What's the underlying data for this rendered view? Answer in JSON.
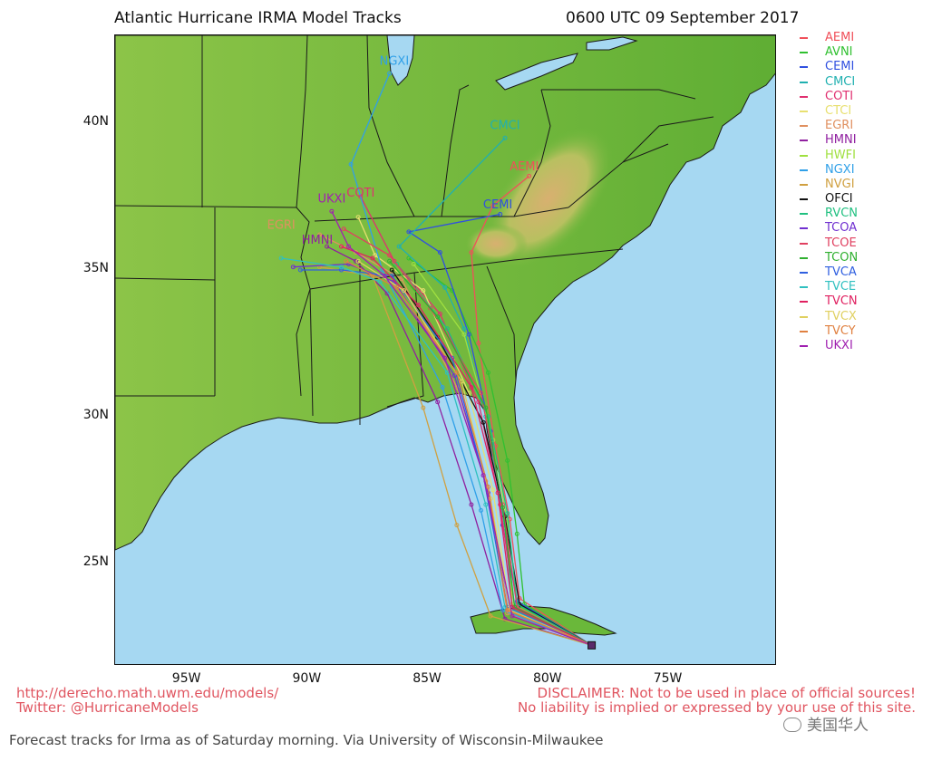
{
  "header": {
    "title": "Atlantic Hurricane IRMA Model Tracks",
    "timestamp": "0600 UTC 09 September 2017"
  },
  "map": {
    "lon_range": [
      -98,
      -70.5
    ],
    "lat_range": [
      21.5,
      43
    ],
    "lat_ticks": [
      {
        "value": 40,
        "label": "40N"
      },
      {
        "value": 35,
        "label": "35N"
      },
      {
        "value": 30,
        "label": "30N"
      },
      {
        "value": 25,
        "label": "25N"
      }
    ],
    "lon_ticks": [
      {
        "value": -95,
        "label": "95W"
      },
      {
        "value": -90,
        "label": "90W"
      },
      {
        "value": -85,
        "label": "85W"
      },
      {
        "value": -80,
        "label": "80W"
      },
      {
        "value": -75,
        "label": "75W"
      }
    ],
    "colors": {
      "land": "#6ab83a",
      "ocean": "#a6d8f2",
      "lakes": "#a6d8f2",
      "borders": "#1a1a1a"
    },
    "storm_origin": {
      "lon": -78.2,
      "lat": 22.2
    }
  },
  "legend": [
    {
      "name": "AEMI",
      "color": "#f0505a"
    },
    {
      "name": "AVNI",
      "color": "#30c030"
    },
    {
      "name": "CEMI",
      "color": "#3050e0"
    },
    {
      "name": "CMCI",
      "color": "#20b0b0"
    },
    {
      "name": "COTI",
      "color": "#e03070"
    },
    {
      "name": "CTCI",
      "color": "#e8e070"
    },
    {
      "name": "EGRI",
      "color": "#e09060"
    },
    {
      "name": "HMNI",
      "color": "#9020a0"
    },
    {
      "name": "HWFI",
      "color": "#a0e040"
    },
    {
      "name": "NGXI",
      "color": "#30a0e8"
    },
    {
      "name": "NVGI",
      "color": "#d0a040"
    },
    {
      "name": "OFCI",
      "color": "#111111"
    },
    {
      "name": "RVCN",
      "color": "#20c080"
    },
    {
      "name": "TCOA",
      "color": "#7030d0"
    },
    {
      "name": "TCOE",
      "color": "#e04060"
    },
    {
      "name": "TCON",
      "color": "#30b030"
    },
    {
      "name": "TVCA",
      "color": "#3060e0"
    },
    {
      "name": "TVCE",
      "color": "#30c0c0"
    },
    {
      "name": "TVCN",
      "color": "#e02060"
    },
    {
      "name": "TVCX",
      "color": "#e0d060"
    },
    {
      "name": "TVCY",
      "color": "#e08040"
    },
    {
      "name": "UKXI",
      "color": "#a020b0"
    }
  ],
  "tracks": [
    {
      "name": "AEMI",
      "points": [
        [
          -78.2,
          22.2
        ],
        [
          -81.2,
          23.8
        ],
        [
          -81.6,
          26.5
        ],
        [
          -82.2,
          29.0
        ],
        [
          -82.9,
          32.5
        ],
        [
          -83.2,
          35.6
        ],
        [
          -82.3,
          37.2
        ],
        [
          -80.8,
          38.2
        ]
      ]
    },
    {
      "name": "AVNI",
      "points": [
        [
          -78.2,
          22.2
        ],
        [
          -81.0,
          23.6
        ],
        [
          -81.3,
          26.0
        ],
        [
          -81.7,
          28.5
        ],
        [
          -82.5,
          31.5
        ],
        [
          -84.0,
          34.3
        ],
        [
          -85.8,
          35.4
        ]
      ]
    },
    {
      "name": "CEMI",
      "points": [
        [
          -78.2,
          22.2
        ],
        [
          -81.3,
          23.7
        ],
        [
          -81.9,
          26.3
        ],
        [
          -82.4,
          29.5
        ],
        [
          -83.3,
          32.8
        ],
        [
          -84.5,
          35.6
        ],
        [
          -85.8,
          36.3
        ],
        [
          -82.0,
          36.9
        ]
      ]
    },
    {
      "name": "CMCI",
      "points": [
        [
          -78.2,
          22.2
        ],
        [
          -81.5,
          23.5
        ],
        [
          -81.8,
          26.2
        ],
        [
          -82.6,
          30.0
        ],
        [
          -83.5,
          33.0
        ],
        [
          -84.3,
          34.4
        ],
        [
          -86.2,
          35.8
        ],
        [
          -81.8,
          39.5
        ]
      ]
    },
    {
      "name": "COTI",
      "points": [
        [
          -78.2,
          22.2
        ],
        [
          -81.4,
          23.5
        ],
        [
          -82.0,
          27.0
        ],
        [
          -82.9,
          30.5
        ],
        [
          -84.5,
          33.5
        ],
        [
          -86.4,
          35.3
        ],
        [
          -87.8,
          37.5
        ]
      ]
    },
    {
      "name": "CTCI",
      "points": [
        [
          -78.2,
          22.2
        ],
        [
          -81.6,
          23.4
        ],
        [
          -82.3,
          27.5
        ],
        [
          -83.3,
          30.8
        ],
        [
          -85.2,
          34.3
        ],
        [
          -87.2,
          35.5
        ],
        [
          -87.9,
          36.8
        ]
      ]
    },
    {
      "name": "EGRI",
      "points": [
        [
          -78.2,
          22.2
        ],
        [
          -81.7,
          23.3
        ],
        [
          -82.6,
          27.8
        ],
        [
          -83.8,
          31.0
        ],
        [
          -86.1,
          34.7
        ],
        [
          -88.0,
          35.6
        ],
        [
          -89.5,
          36.2
        ]
      ]
    },
    {
      "name": "HMNI",
      "points": [
        [
          -78.2,
          22.2
        ],
        [
          -81.8,
          23.1
        ],
        [
          -83.2,
          27.0
        ],
        [
          -84.6,
          30.5
        ],
        [
          -86.7,
          34.2
        ],
        [
          -88.0,
          35.3
        ],
        [
          -89.2,
          35.8
        ]
      ]
    },
    {
      "name": "HWFI",
      "points": [
        [
          -78.2,
          22.2
        ],
        [
          -81.5,
          23.6
        ],
        [
          -81.7,
          26.4
        ],
        [
          -82.3,
          29.2
        ],
        [
          -83.5,
          32.8
        ],
        [
          -85.6,
          35.2
        ]
      ]
    },
    {
      "name": "NGXI",
      "points": [
        [
          -78.2,
          22.2
        ],
        [
          -81.9,
          23.4
        ],
        [
          -82.8,
          26.8
        ],
        [
          -84.4,
          31.0
        ],
        [
          -86.9,
          35.0
        ],
        [
          -88.2,
          38.6
        ],
        [
          -86.6,
          41.7
        ]
      ]
    },
    {
      "name": "NVGI",
      "points": [
        [
          -78.2,
          22.2
        ],
        [
          -82.4,
          23.2
        ],
        [
          -83.8,
          26.3
        ],
        [
          -85.2,
          30.3
        ],
        [
          -87.3,
          34.8
        ],
        [
          -89.5,
          35.1
        ]
      ]
    },
    {
      "name": "OFCI",
      "points": [
        [
          -78.2,
          22.2
        ],
        [
          -81.2,
          23.6
        ],
        [
          -81.8,
          26.6
        ],
        [
          -82.7,
          29.8
        ],
        [
          -84.6,
          32.7
        ],
        [
          -86.5,
          35.0
        ]
      ]
    },
    {
      "name": "RVCN",
      "points": [
        [
          -78.2,
          22.2
        ],
        [
          -81.3,
          23.6
        ],
        [
          -81.7,
          26.7
        ],
        [
          -82.5,
          30.0
        ],
        [
          -84.2,
          33.0
        ],
        [
          -86.3,
          35.2
        ]
      ]
    },
    {
      "name": "TCOA",
      "points": [
        [
          -78.2,
          22.2
        ],
        [
          -81.6,
          23.4
        ],
        [
          -82.5,
          27.4
        ],
        [
          -83.9,
          31.4
        ],
        [
          -86.4,
          34.6
        ],
        [
          -88.3,
          35.2
        ],
        [
          -90.6,
          35.1
        ]
      ]
    },
    {
      "name": "TCOE",
      "points": [
        [
          -78.2,
          22.2
        ],
        [
          -81.3,
          23.5
        ],
        [
          -81.9,
          27.0
        ],
        [
          -82.8,
          30.8
        ],
        [
          -84.9,
          33.7
        ],
        [
          -86.6,
          35.5
        ],
        [
          -88.5,
          36.4
        ]
      ]
    },
    {
      "name": "TCON",
      "points": [
        [
          -78.2,
          22.2
        ],
        [
          -81.4,
          23.5
        ],
        [
          -81.9,
          26.9
        ],
        [
          -82.6,
          30.3
        ],
        [
          -84.6,
          33.4
        ],
        [
          -86.6,
          35.3
        ]
      ]
    },
    {
      "name": "TVCA",
      "points": [
        [
          -78.2,
          22.2
        ],
        [
          -81.7,
          23.5
        ],
        [
          -82.7,
          28.0
        ],
        [
          -84.0,
          32.0
        ],
        [
          -86.5,
          34.8
        ],
        [
          -88.6,
          35.0
        ],
        [
          -90.3,
          35.0
        ]
      ]
    },
    {
      "name": "TVCE",
      "points": [
        [
          -78.2,
          22.2
        ],
        [
          -81.8,
          23.5
        ],
        [
          -82.6,
          27.0
        ],
        [
          -84.2,
          31.5
        ],
        [
          -87.0,
          34.6
        ],
        [
          -88.6,
          35.1
        ],
        [
          -91.1,
          35.4
        ]
      ]
    },
    {
      "name": "TVCN",
      "points": [
        [
          -78.2,
          22.2
        ],
        [
          -81.5,
          23.5
        ],
        [
          -82.1,
          27.4
        ],
        [
          -83.2,
          31.0
        ],
        [
          -85.4,
          33.8
        ],
        [
          -87.3,
          35.4
        ],
        [
          -88.6,
          35.8
        ]
      ]
    },
    {
      "name": "TVCX",
      "points": [
        [
          -78.2,
          22.2
        ],
        [
          -81.6,
          23.4
        ],
        [
          -82.4,
          27.2
        ],
        [
          -83.6,
          31.2
        ],
        [
          -86.0,
          34.3
        ],
        [
          -87.9,
          35.3
        ]
      ]
    },
    {
      "name": "TVCY",
      "points": [
        [
          -78.2,
          22.2
        ],
        [
          -81.7,
          23.4
        ],
        [
          -82.5,
          27.6
        ],
        [
          -83.8,
          31.5
        ],
        [
          -86.3,
          34.4
        ],
        [
          -88.4,
          35.3
        ]
      ]
    },
    {
      "name": "UKXI",
      "points": [
        [
          -78.2,
          22.2
        ],
        [
          -81.5,
          23.2
        ],
        [
          -82.7,
          28.0
        ],
        [
          -84.3,
          32.0
        ],
        [
          -86.8,
          34.8
        ],
        [
          -88.3,
          35.8
        ],
        [
          -89.0,
          37.0
        ]
      ]
    }
  ],
  "track_labels": [
    {
      "text": "AEMI",
      "lon": -81.0,
      "lat": 38.4,
      "color": "#f0505a"
    },
    {
      "text": "CMCI",
      "lon": -81.8,
      "lat": 39.8,
      "color": "#20b0b0"
    },
    {
      "text": "CEMI",
      "lon": -82.1,
      "lat": 37.1,
      "color": "#3050e0"
    },
    {
      "text": "NGXI",
      "lon": -86.4,
      "lat": 42.0,
      "color": "#30a0e8"
    },
    {
      "text": "UKXI",
      "lon": -89.0,
      "lat": 37.3,
      "color": "#a020b0"
    },
    {
      "text": "COTI",
      "lon": -87.8,
      "lat": 37.5,
      "color": "#e03070"
    },
    {
      "text": "HMNI",
      "lon": -89.6,
      "lat": 35.9,
      "color": "#9020a0"
    },
    {
      "text": "EGRI",
      "lon": -91.1,
      "lat": 36.4,
      "color": "#e09060"
    }
  ],
  "footer": {
    "url": "http://derecho.math.uwm.edu/models/",
    "twitter": "Twitter: @HurricaneModels",
    "disclaimer_1": "DISCLAIMER: Not to be used in place of official sources!",
    "disclaimer_2": "No liability is implied or expressed by your use of this site."
  },
  "caption": "Forecast tracks for Irma as of Saturday morning. Via University of Wisconsin-Milwaukee",
  "watermark": "美国华人"
}
